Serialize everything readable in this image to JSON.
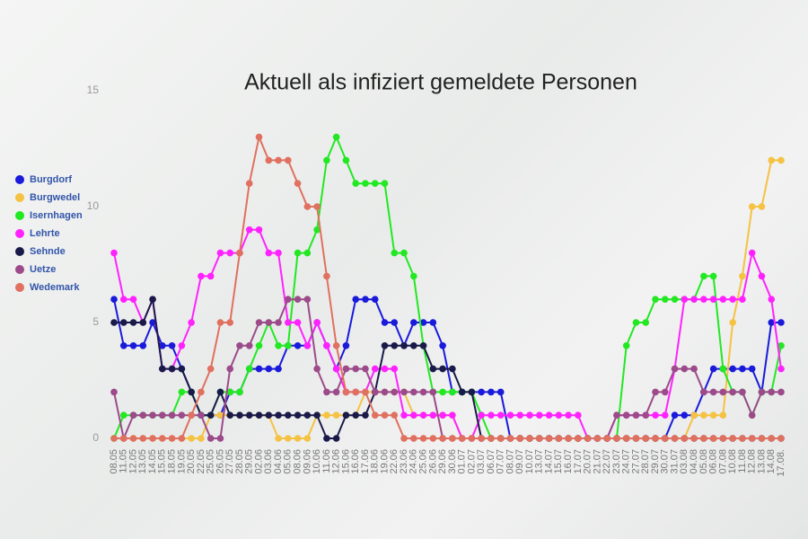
{
  "chart_data": {
    "type": "line",
    "title": "Aktuell als infiziert gemeldete Personen",
    "categories": [
      "08.05",
      "11.05",
      "12.05",
      "13.05",
      "14.05",
      "15.05",
      "18.05",
      "19.05",
      "20.05",
      "22.05",
      "25.05",
      "26.05",
      "27.05",
      "28.05",
      "29.05",
      "02.06",
      "03.06",
      "04.06",
      "05.06",
      "08.06",
      "09.06",
      "10.06",
      "11.06",
      "12.06",
      "15.06",
      "16.06",
      "17.06",
      "18.06",
      "19.06",
      "22.06",
      "23.06",
      "24.06",
      "25.06",
      "26.06",
      "29.06",
      "30.06",
      "01.07",
      "02.07",
      "03.07",
      "06.07",
      "07.07",
      "08.07",
      "09.07",
      "10.07",
      "13.07",
      "14.07",
      "15.07",
      "16.07",
      "17.07",
      "20.07",
      "21.07",
      "22.07",
      "23.07",
      "24.07",
      "27.07",
      "28.07",
      "29.07",
      "30.07",
      "31.07",
      "03.08",
      "04.08",
      "05.08",
      "06.08",
      "07.08",
      "10.08",
      "11.08",
      "12.08",
      "13.08",
      "14.08",
      "17.08."
    ],
    "ylim": [
      0,
      15
    ],
    "yticks": [
      0,
      5,
      10,
      15
    ],
    "grid": false,
    "legend": "left",
    "series": [
      {
        "name": "Burgdorf",
        "color": "#1a1adb",
        "values": [
          6,
          4,
          4,
          4,
          5,
          4,
          4,
          3,
          2,
          1,
          1,
          1,
          2,
          2,
          3,
          3,
          3,
          3,
          4,
          4,
          4,
          5,
          4,
          3,
          4,
          6,
          6,
          6,
          5,
          5,
          4,
          5,
          5,
          5,
          4,
          2,
          2,
          2,
          2,
          2,
          2,
          0,
          0,
          0,
          0,
          0,
          0,
          0,
          0,
          0,
          0,
          0,
          0,
          0,
          0,
          0,
          0,
          0,
          1,
          1,
          1,
          2,
          3,
          3,
          3,
          3,
          3,
          2,
          5,
          5
        ]
      },
      {
        "name": "Burgwedel",
        "color": "#f5c242",
        "values": [
          0,
          0,
          0,
          0,
          0,
          0,
          0,
          0,
          0,
          0,
          1,
          1,
          1,
          1,
          1,
          1,
          1,
          0,
          0,
          0,
          0,
          1,
          1,
          1,
          1,
          1,
          2,
          2,
          2,
          2,
          2,
          1,
          1,
          1,
          1,
          1,
          0,
          0,
          0,
          0,
          0,
          0,
          0,
          0,
          0,
          0,
          0,
          0,
          0,
          0,
          0,
          0,
          0,
          0,
          0,
          0,
          0,
          0,
          0,
          0,
          1,
          1,
          1,
          1,
          5,
          7,
          10,
          10,
          12,
          12
        ]
      },
      {
        "name": "Isernhagen",
        "color": "#22e822",
        "values": [
          0,
          1,
          1,
          1,
          1,
          1,
          1,
          2,
          2,
          1,
          1,
          2,
          2,
          2,
          3,
          4,
          5,
          4,
          4,
          8,
          8,
          9,
          12,
          13,
          12,
          11,
          11,
          11,
          11,
          8,
          8,
          7,
          4,
          2,
          2,
          2,
          2,
          2,
          1,
          0,
          0,
          0,
          0,
          0,
          0,
          0,
          0,
          0,
          0,
          0,
          0,
          0,
          0,
          4,
          5,
          5,
          6,
          6,
          6,
          6,
          6,
          7,
          7,
          3,
          2,
          2,
          1,
          2,
          2,
          4
        ]
      },
      {
        "name": "Lehrte",
        "color": "#ff22ff",
        "values": [
          8,
          6,
          6,
          5,
          6,
          3,
          3,
          4,
          5,
          7,
          7,
          8,
          8,
          8,
          9,
          9,
          8,
          8,
          5,
          5,
          4,
          5,
          4,
          3,
          2,
          2,
          2,
          3,
          3,
          3,
          1,
          1,
          1,
          1,
          1,
          1,
          0,
          0,
          1,
          1,
          1,
          1,
          1,
          1,
          1,
          1,
          1,
          1,
          1,
          0,
          0,
          0,
          1,
          1,
          1,
          1,
          1,
          1,
          3,
          6,
          6,
          6,
          6,
          6,
          6,
          6,
          8,
          7,
          6,
          3
        ]
      },
      {
        "name": "Sehnde",
        "color": "#1a1a4a",
        "values": [
          5,
          5,
          5,
          5,
          6,
          3,
          3,
          3,
          2,
          1,
          1,
          2,
          1,
          1,
          1,
          1,
          1,
          1,
          1,
          1,
          1,
          1,
          0,
          0,
          1,
          1,
          1,
          2,
          4,
          4,
          4,
          4,
          4,
          3,
          3,
          3,
          2,
          2,
          0,
          0,
          0,
          0,
          0,
          0,
          0,
          0,
          0,
          0,
          0,
          0,
          0,
          0,
          0,
          0,
          0,
          0,
          0,
          0,
          0,
          0,
          0,
          0,
          0,
          0,
          0,
          0,
          0,
          0,
          0,
          0
        ]
      },
      {
        "name": "Uetze",
        "color": "#9c4a8a",
        "values": [
          2,
          0,
          1,
          1,
          1,
          1,
          1,
          1,
          1,
          1,
          0,
          0,
          3,
          4,
          4,
          5,
          5,
          5,
          6,
          6,
          6,
          3,
          2,
          2,
          3,
          3,
          3,
          2,
          2,
          2,
          2,
          2,
          2,
          2,
          0,
          0,
          0,
          0,
          0,
          0,
          0,
          0,
          0,
          0,
          0,
          0,
          0,
          0,
          0,
          0,
          0,
          0,
          1,
          1,
          1,
          1,
          2,
          2,
          3,
          3,
          3,
          2,
          2,
          2,
          2,
          2,
          1,
          2,
          2,
          2
        ]
      },
      {
        "name": "Wedemark",
        "color": "#e0705f",
        "values": [
          0,
          0,
          0,
          0,
          0,
          0,
          0,
          0,
          1,
          2,
          3,
          5,
          5,
          8,
          11,
          13,
          12,
          12,
          12,
          11,
          10,
          10,
          7,
          4,
          2,
          2,
          2,
          1,
          1,
          1,
          0,
          0,
          0,
          0,
          0,
          0,
          0,
          0,
          0,
          0,
          0,
          0,
          0,
          0,
          0,
          0,
          0,
          0,
          0,
          0,
          0,
          0,
          0,
          0,
          0,
          0,
          0,
          0,
          0,
          0,
          0,
          0,
          0,
          0,
          0,
          0,
          0,
          0,
          0,
          0
        ]
      }
    ]
  }
}
